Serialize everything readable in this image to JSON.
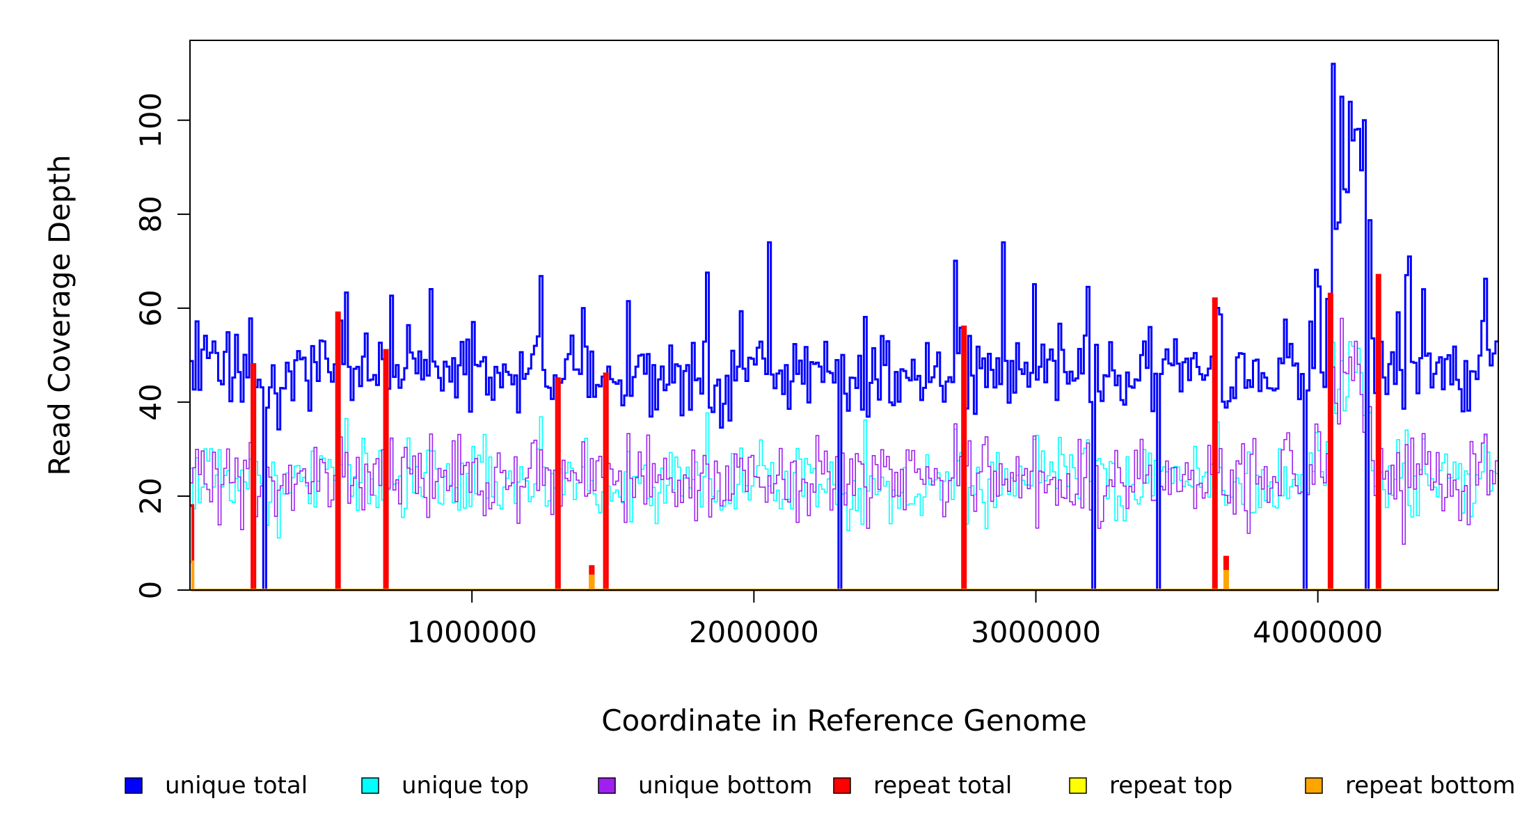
{
  "chart_data": {
    "type": "line",
    "title": "",
    "xlabel": "Coordinate in Reference Genome",
    "ylabel": "Read Coverage Depth",
    "xlim": [
      0,
      4640000
    ],
    "ylim": [
      0,
      117
    ],
    "x_ticks": [
      1000000,
      2000000,
      3000000,
      4000000
    ],
    "x_tick_labels": [
      "1000000",
      "2000000",
      "3000000",
      "4000000"
    ],
    "y_ticks": [
      0,
      20,
      40,
      60,
      80,
      100
    ],
    "y_tick_labels": [
      "0",
      "20",
      "40",
      "60",
      "80",
      "100"
    ],
    "bin_size": 10000,
    "grid": false,
    "legend_position": "bottom",
    "legend": [
      {
        "label": "unique total",
        "color": "#0000ff"
      },
      {
        "label": "unique top",
        "color": "#00ffff"
      },
      {
        "label": "unique bottom",
        "color": "#a020f0"
      },
      {
        "label": "repeat total",
        "color": "#ff0000"
      },
      {
        "label": "repeat top",
        "color": "#ffff00"
      },
      {
        "label": "repeat bottom",
        "color": "#ffa500"
      }
    ],
    "series_summary": [
      {
        "name": "unique total",
        "color": "#0000ff",
        "typical_range": [
          35,
          65
        ],
        "baseline_mean": 46
      },
      {
        "name": "unique top",
        "color": "#00ffff",
        "typical_range": [
          12,
          35
        ],
        "baseline_mean": 23
      },
      {
        "name": "unique bottom",
        "color": "#a020f0",
        "typical_range": [
          12,
          35
        ],
        "baseline_mean": 23
      },
      {
        "name": "repeat total",
        "color": "#ff0000",
        "typical_range": [
          0,
          67
        ],
        "baseline_mean": 0
      },
      {
        "name": "repeat top",
        "color": "#ffff00",
        "typical_range": [
          0,
          1
        ],
        "baseline_mean": 0
      },
      {
        "name": "repeat bottom",
        "color": "#ffa500",
        "typical_range": [
          0,
          6
        ],
        "baseline_mean": 0
      }
    ],
    "coverage_drops_to_zero_at": [
      220000,
      265000,
      520000,
      690000,
      1300000,
      1470000,
      2300000,
      2740000,
      3200000,
      3430000,
      3630000,
      3950000,
      4040000,
      4170000,
      4210000
    ],
    "repeat_total_peaks": [
      {
        "x": 5000,
        "y": 18
      },
      {
        "x": 220000,
        "y": 48
      },
      {
        "x": 520000,
        "y": 59
      },
      {
        "x": 690000,
        "y": 51
      },
      {
        "x": 1300000,
        "y": 45
      },
      {
        "x": 1420000,
        "y": 5
      },
      {
        "x": 1470000,
        "y": 46
      },
      {
        "x": 2740000,
        "y": 56
      },
      {
        "x": 3630000,
        "y": 62
      },
      {
        "x": 3670000,
        "y": 7
      },
      {
        "x": 4040000,
        "y": 63
      },
      {
        "x": 4210000,
        "y": 67
      }
    ],
    "repeat_bottom_peaks": [
      {
        "x": 5000,
        "y": 6
      },
      {
        "x": 1420000,
        "y": 3
      },
      {
        "x": 3670000,
        "y": 4
      }
    ],
    "notable_points": [
      {
        "series": "unique total",
        "x": 4050000,
        "y": 112
      },
      {
        "series": "unique total",
        "x": 4080000,
        "y": 105
      },
      {
        "series": "unique total",
        "x": 4160000,
        "y": 100
      },
      {
        "series": "unique total",
        "x": 4130000,
        "y": 98
      },
      {
        "series": "unique total",
        "x": 2050000,
        "y": 74
      },
      {
        "series": "unique total",
        "x": 2880000,
        "y": 74
      },
      {
        "series": "unique total",
        "x": 4320000,
        "y": 71
      }
    ]
  }
}
